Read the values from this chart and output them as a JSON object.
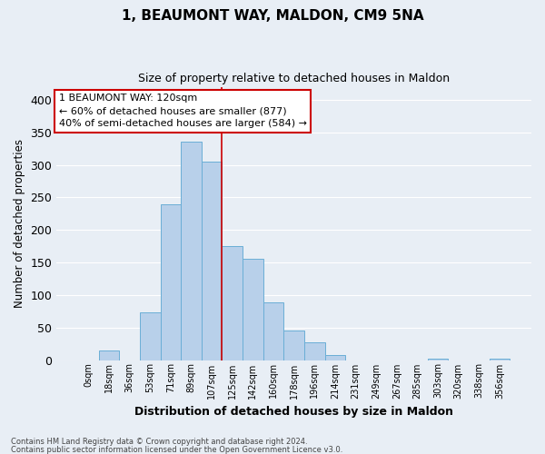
{
  "title": "1, BEAUMONT WAY, MALDON, CM9 5NA",
  "subtitle": "Size of property relative to detached houses in Maldon",
  "xlabel": "Distribution of detached houses by size in Maldon",
  "ylabel": "Number of detached properties",
  "bar_labels": [
    "0sqm",
    "18sqm",
    "36sqm",
    "53sqm",
    "71sqm",
    "89sqm",
    "107sqm",
    "125sqm",
    "142sqm",
    "160sqm",
    "178sqm",
    "196sqm",
    "214sqm",
    "231sqm",
    "249sqm",
    "267sqm",
    "285sqm",
    "303sqm",
    "320sqm",
    "338sqm",
    "356sqm"
  ],
  "bar_values": [
    0,
    15,
    0,
    73,
    240,
    335,
    305,
    175,
    155,
    88,
    45,
    27,
    7,
    0,
    0,
    0,
    0,
    2,
    0,
    0,
    2
  ],
  "bar_color": "#b8d0ea",
  "bar_edge_color": "#6aaed6",
  "vline_color": "#cc0000",
  "annotation_title": "1 BEAUMONT WAY: 120sqm",
  "annotation_line1": "← 60% of detached houses are smaller (877)",
  "annotation_line2": "40% of semi-detached houses are larger (584) →",
  "annotation_box_color": "#ffffff",
  "annotation_box_edge_color": "#cc0000",
  "ylim": [
    0,
    420
  ],
  "yticks": [
    0,
    50,
    100,
    150,
    200,
    250,
    300,
    350,
    400
  ],
  "footnote1": "Contains HM Land Registry data © Crown copyright and database right 2024.",
  "footnote2": "Contains public sector information licensed under the Open Government Licence v3.0.",
  "background_color": "#e8eef5",
  "grid_color": "#ffffff",
  "vline_bar_index": 7
}
